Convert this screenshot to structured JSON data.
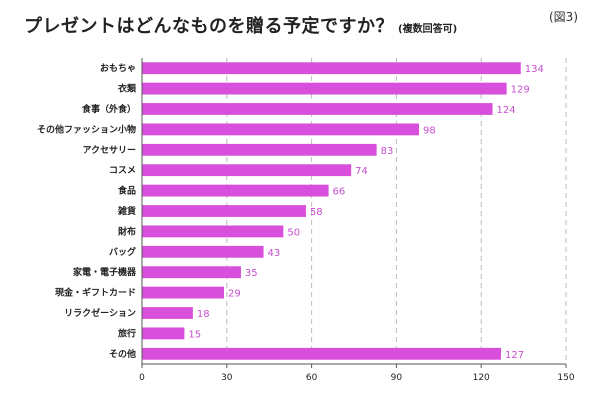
{
  "header": {
    "title": "プレゼントはどんなものを贈る予定ですか？",
    "subtitle": "(複数回答可)",
    "figure_label": "(図3)"
  },
  "colors": {
    "bar": "#d84fdc",
    "value_text": "#c94fd0",
    "grid": "#bbbbbb",
    "axis": "#555555"
  },
  "chart_data": {
    "type": "bar",
    "orientation": "horizontal",
    "title": "プレゼントはどんなものを贈る予定ですか？",
    "subtitle": "(複数回答可)",
    "categories": [
      "おもちゃ",
      "衣類",
      "食事（外食）",
      "その他ファッション小物",
      "アクセサリー",
      "コスメ",
      "食品",
      "雑貨",
      "財布",
      "バッグ",
      "家電・電子機器",
      "現金・ギフトカード",
      "リラクゼーション",
      "旅行",
      "その他"
    ],
    "values": [
      134,
      129,
      124,
      98,
      83,
      74,
      66,
      58,
      50,
      43,
      35,
      29,
      18,
      15,
      127
    ],
    "xlim": [
      0,
      150
    ],
    "xticks": [
      0,
      30,
      60,
      90,
      120,
      150
    ],
    "grid": "vertical dashed",
    "legend": "none"
  }
}
